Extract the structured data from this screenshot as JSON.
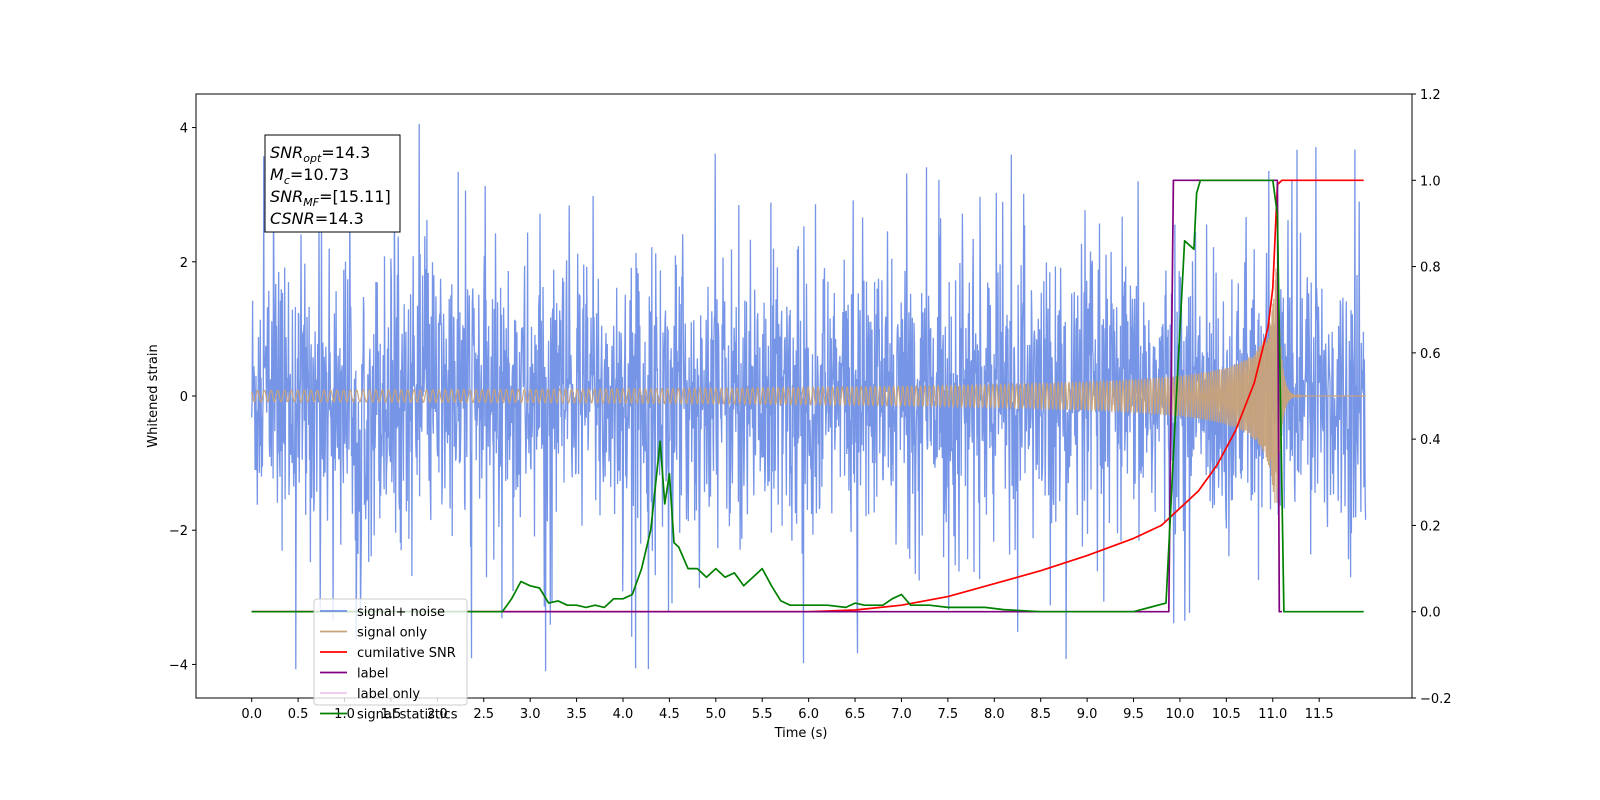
{
  "chart_data": {
    "type": "line",
    "title": "",
    "xlabel": "Time (s)",
    "ylabel": "Whitened strain",
    "xlim": [
      -0.6,
      12.5
    ],
    "ylim": [
      -4.5,
      4.5
    ],
    "y2lim": [
      -0.2,
      1.2
    ],
    "xticks": [
      "0.0",
      "0.5",
      "1.0",
      "1.5",
      "2.0",
      "2.5",
      "3.0",
      "3.5",
      "4.0",
      "4.5",
      "5.0",
      "5.5",
      "6.0",
      "6.5",
      "7.0",
      "7.5",
      "8.0",
      "8.5",
      "9.0",
      "9.5",
      "10.0",
      "10.5",
      "11.0",
      "11.5"
    ],
    "yticks": [
      "4",
      "2",
      "0",
      "−2",
      "−4"
    ],
    "y2ticks": [
      "1.2",
      "1.0",
      "0.8",
      "0.6",
      "0.4",
      "0.2",
      "0.0",
      "−0.2"
    ],
    "legend_position": "lower-left",
    "annotation": {
      "lines": [
        {
          "sym": "SNR",
          "sub": "opt",
          "rest": "=14.3"
        },
        {
          "sym": "M",
          "sub": "c",
          "rest": "=10.73"
        },
        {
          "sym": "SNR",
          "sub": "MF",
          "rest": "=[15.11]"
        },
        {
          "sym": "CSNR",
          "sub": "",
          "rest": "=14.3"
        }
      ]
    },
    "series": [
      {
        "name": "signal+ noise",
        "color": "#6f8fe6",
        "axis": "left",
        "kind": "noise",
        "range": [
          0.0,
          12.0
        ],
        "typical_amplitude": 1.2,
        "peak_amplitude": 4.1
      },
      {
        "name": "signal only",
        "color": "#c8a27a",
        "axis": "left",
        "kind": "chirp",
        "range": [
          0.0,
          12.0
        ],
        "merger_time": 11.05,
        "peak_amplitude": 1.9
      },
      {
        "name": "cumilative SNR",
        "color": "#ff0000",
        "axis": "right",
        "x": [
          0.0,
          6.0,
          6.5,
          7.0,
          7.5,
          8.0,
          8.5,
          9.0,
          9.5,
          9.8,
          10.0,
          10.2,
          10.4,
          10.6,
          10.8,
          10.95,
          11.0,
          11.05,
          11.1,
          11.98
        ],
        "y": [
          0.0,
          0.0,
          0.004,
          0.015,
          0.035,
          0.065,
          0.095,
          0.13,
          0.17,
          0.2,
          0.24,
          0.28,
          0.34,
          0.42,
          0.53,
          0.66,
          0.75,
          0.99,
          1.0,
          1.0
        ]
      },
      {
        "name": "label",
        "color": "#800080",
        "axis": "right",
        "x": [
          0.0,
          9.88,
          9.93,
          11.05,
          11.07,
          11.1
        ],
        "y": [
          0.0,
          0.0,
          1.0,
          1.0,
          0.0,
          0.0
        ]
      },
      {
        "name": "label only",
        "color": "#e6a0e6",
        "axis": "right",
        "hidden_in_plot": true,
        "x": [],
        "y": []
      },
      {
        "name": "signal statistics",
        "color": "#008000",
        "axis": "right",
        "x": [
          0.0,
          2.7,
          2.8,
          2.9,
          3.0,
          3.1,
          3.2,
          3.3,
          3.4,
          3.5,
          3.6,
          3.7,
          3.8,
          3.9,
          4.0,
          4.1,
          4.2,
          4.3,
          4.4,
          4.45,
          4.5,
          4.55,
          4.6,
          4.7,
          4.8,
          4.9,
          5.0,
          5.1,
          5.2,
          5.3,
          5.4,
          5.5,
          5.6,
          5.7,
          5.8,
          5.9,
          6.0,
          6.2,
          6.4,
          6.5,
          6.6,
          6.8,
          6.9,
          7.0,
          7.1,
          7.3,
          7.5,
          7.7,
          7.9,
          8.1,
          8.5,
          9.0,
          9.5,
          9.85,
          9.95,
          10.05,
          10.15,
          10.18,
          10.22,
          10.25,
          10.3,
          10.35,
          10.5,
          11.0,
          11.05,
          11.12,
          11.98
        ],
        "y": [
          0.0,
          0.0,
          0.03,
          0.07,
          0.06,
          0.055,
          0.02,
          0.025,
          0.015,
          0.015,
          0.01,
          0.015,
          0.01,
          0.03,
          0.03,
          0.04,
          0.1,
          0.19,
          0.395,
          0.25,
          0.32,
          0.16,
          0.15,
          0.1,
          0.1,
          0.08,
          0.1,
          0.08,
          0.09,
          0.06,
          0.08,
          0.1,
          0.06,
          0.025,
          0.015,
          0.015,
          0.015,
          0.015,
          0.01,
          0.02,
          0.015,
          0.015,
          0.03,
          0.04,
          0.015,
          0.015,
          0.01,
          0.01,
          0.01,
          0.005,
          0.0,
          0.0,
          0.0,
          0.02,
          0.45,
          0.86,
          0.84,
          0.97,
          1.0,
          1.0,
          1.0,
          1.0,
          1.0,
          1.0,
          0.92,
          0.0,
          0.0
        ]
      }
    ]
  }
}
